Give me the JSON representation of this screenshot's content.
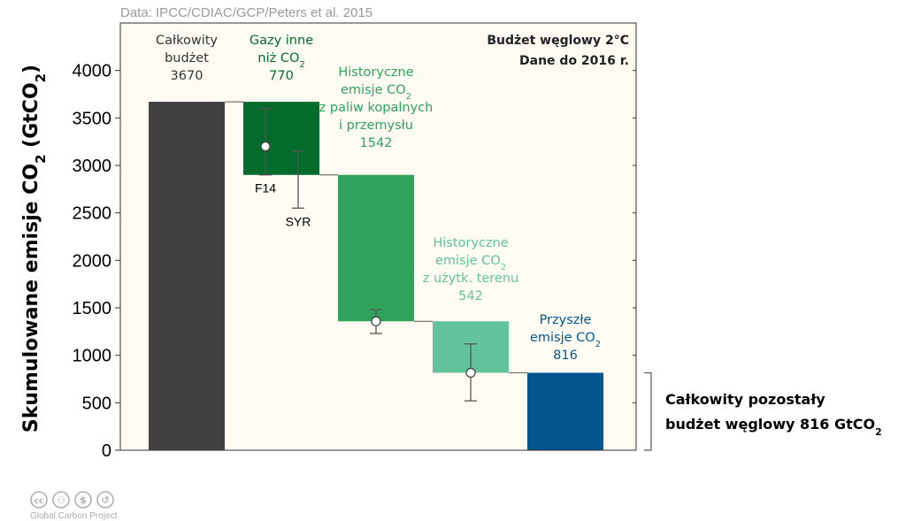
{
  "chart_data": {
    "type": "bar",
    "subtype": "waterfall",
    "source_note": "Data: IPCC/CDIAC/GCP/Peters et al. 2015",
    "corner_lines": [
      "Budżet węglowy 2°C",
      "Dane do 2016 r."
    ],
    "ylabel": "Skumulowane emisje CO₂ (GtCO₂)",
    "ylim": [
      0,
      4500
    ],
    "yticks": [
      0,
      500,
      1000,
      1500,
      2000,
      2500,
      3000,
      3500,
      4000
    ],
    "grid": false,
    "bars": [
      {
        "label_lines": [
          "Całkowity",
          "budżet",
          "3670"
        ],
        "bottom": 0,
        "top": 3670,
        "color": "#404040",
        "text_color": "#333333"
      },
      {
        "label_lines": [
          "Gazy inne",
          "niż CO₂",
          "770"
        ],
        "bottom": 2900,
        "top": 3670,
        "color": "#036c2c",
        "text_color": "#036c2c",
        "uncertainty": [
          {
            "label": "F14",
            "center": 3200,
            "low": 2900,
            "high": 3600
          },
          {
            "label": "SYR",
            "low": 2550,
            "high": 3150
          }
        ]
      },
      {
        "label_lines": [
          "Historyczne",
          "emisje CO₂",
          "z paliw kopalnych",
          "i przemysłu",
          "1542"
        ],
        "bottom": 1358,
        "top": 2900,
        "color": "#2fa35c",
        "text_color": "#2fa35c",
        "uncertainty": [
          {
            "center": 1358,
            "low": 1230,
            "high": 1480
          }
        ]
      },
      {
        "label_lines": [
          "Historyczne",
          "emisje CO₂",
          "z użytk. terenu",
          "542"
        ],
        "bottom": 816,
        "top": 1358,
        "color": "#62c39c",
        "text_color": "#62c39c",
        "uncertainty": [
          {
            "center": 816,
            "low": 520,
            "high": 1120
          }
        ]
      },
      {
        "label_lines": [
          "Przyszłe",
          "emisje CO₂",
          "816"
        ],
        "bottom": 0,
        "top": 816,
        "color": "#03558d",
        "text_color": "#03558d"
      }
    ],
    "side_annotation": [
      "Całkowity pozostały",
      "budżet węglowy 816 GtCO₂"
    ]
  },
  "footer": {
    "license_icons": [
      "cc-icon",
      "by-icon",
      "nc-icon",
      "sa-icon"
    ],
    "credit": "Global Carbon Project"
  }
}
